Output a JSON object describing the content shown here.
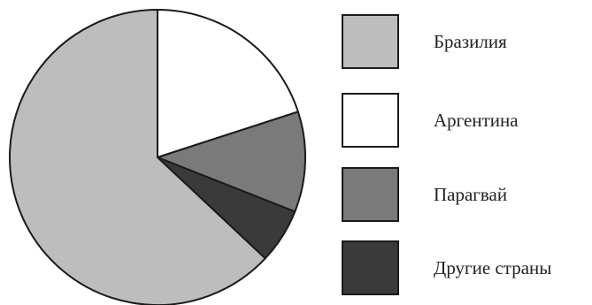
{
  "chart_data": {
    "type": "pie",
    "title": "",
    "start_angle_deg": 90,
    "direction": "clockwise",
    "slices": [
      {
        "label": "Аргентина",
        "value": 20,
        "color": "#ffffff"
      },
      {
        "label": "Парагвай",
        "value": 11,
        "color": "#7a7a7a"
      },
      {
        "label": "Другие страны",
        "value": 6,
        "color": "#3a3a3a"
      },
      {
        "label": "Бразилия",
        "value": 63,
        "color": "#bdbdbd"
      }
    ],
    "legend": {
      "position": "right",
      "order": [
        "Бразилия",
        "Аргентина",
        "Парагвай",
        "Другие страны"
      ]
    },
    "slice_border_color": "#1a1a1a"
  }
}
